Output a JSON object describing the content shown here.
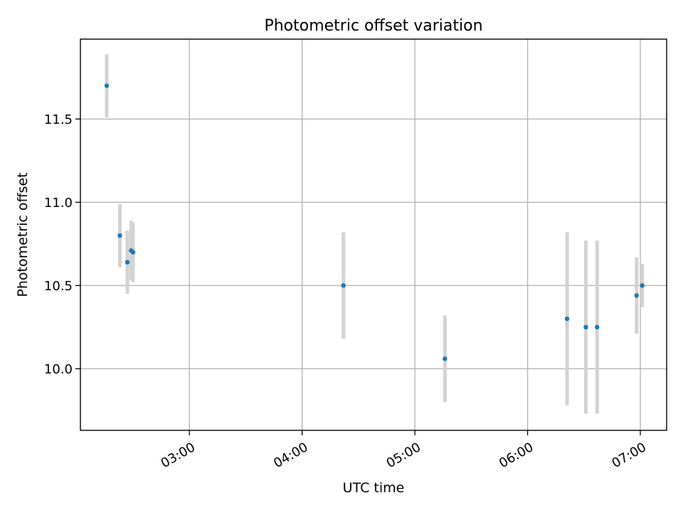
{
  "chart_data": {
    "type": "scatter",
    "title": "Photometric offset variation",
    "xlabel": "UTC time",
    "ylabel": "Photometric offset",
    "x_axis_type": "time",
    "xlim": [
      "02:02",
      "07:14"
    ],
    "ylim": [
      9.63,
      11.98
    ],
    "xticks": [
      "03:00",
      "04:00",
      "05:00",
      "06:00",
      "07:00"
    ],
    "yticks": [
      10.0,
      10.5,
      11.0,
      11.5
    ],
    "ytick_labels": [
      "10.0",
      "10.5",
      "11.0",
      "11.5"
    ],
    "grid": true,
    "colors": {
      "point": "#1f77b4",
      "errorbar": "#d3d3d3",
      "grid": "#b0b0b0"
    },
    "series": [
      {
        "points": [
          {
            "x": "02:16",
            "y": 11.7,
            "yerr": 0.19
          },
          {
            "x": "02:23",
            "y": 10.8,
            "yerr": 0.19
          },
          {
            "x": "02:27",
            "y": 10.64,
            "yerr": 0.19
          },
          {
            "x": "02:29",
            "y": 10.71,
            "yerr": 0.18
          },
          {
            "x": "02:30",
            "y": 10.7,
            "yerr": 0.18
          },
          {
            "x": "04:22",
            "y": 10.5,
            "yerr": 0.32
          },
          {
            "x": "05:16",
            "y": 10.06,
            "yerr": 0.26
          },
          {
            "x": "06:21",
            "y": 10.3,
            "yerr": 0.52
          },
          {
            "x": "06:31",
            "y": 10.25,
            "yerr": 0.52
          },
          {
            "x": "06:37",
            "y": 10.25,
            "yerr": 0.52
          },
          {
            "x": "06:58",
            "y": 10.44,
            "yerr": 0.23
          },
          {
            "x": "07:01",
            "y": 10.5,
            "yerr": 0.13
          }
        ]
      }
    ]
  }
}
